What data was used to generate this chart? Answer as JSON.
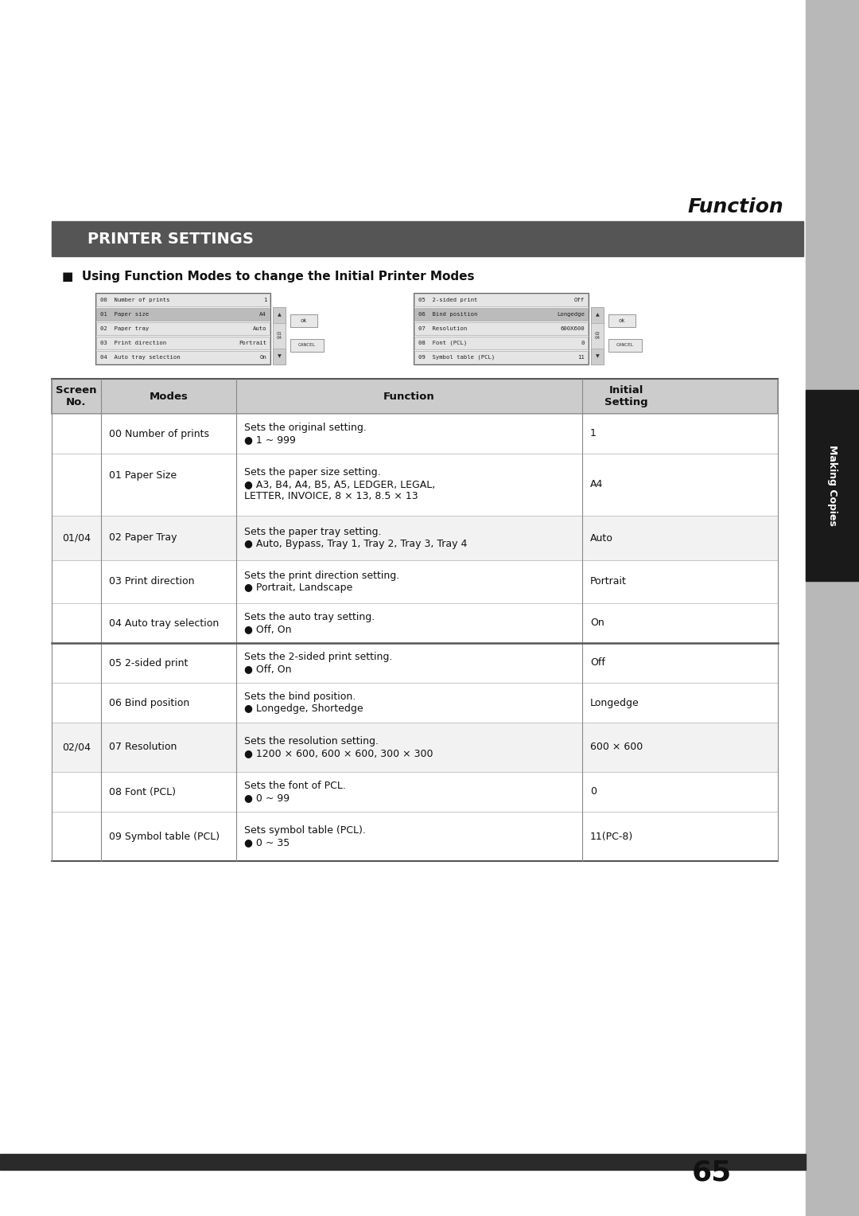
{
  "page_bg": "#ffffff",
  "sidebar_color": "#b8b8b8",
  "sidebar_text": "Making Copies",
  "sidebar_tab_color": "#1a1a1a",
  "header_label": "Function",
  "section_header_bg": "#555555",
  "section_header_text": "PRINTER SETTINGS",
  "subsection_title": "■  Using Function Modes to change the Initial Printer Modes",
  "page_number": "65",
  "table_header_bg": "#cccccc",
  "table_row_alt_bg": "#f2f2f2",
  "table_row_bg": "#ffffff",
  "col_headers": [
    "Screen\nNo.",
    "Modes",
    "Function",
    "Initial\nSetting"
  ],
  "rows": [
    {
      "screen": "",
      "mode": "00 Number of prints",
      "function_line1": "Sets the original setting.",
      "function_line2": "● 1 ~ 999",
      "initial": "1",
      "group": "01/04",
      "shade": false
    },
    {
      "screen": "",
      "mode": "01 Paper Size",
      "function_line1": "Sets the paper size setting.",
      "function_line2": "● A3, B4, A4, B5, A5, LEDGER, LEGAL,",
      "function_line3": "LETTER, INVOICE, 8 × 13, 8.5 × 13",
      "initial": "A4",
      "group": "01/04",
      "shade": false
    },
    {
      "screen": "01/04",
      "mode": "02 Paper Tray",
      "function_line1": "Sets the paper tray setting.",
      "function_line2": "● Auto, Bypass, Tray 1, Tray 2, Tray 3, Tray 4",
      "initial": "Auto",
      "group": "01/04",
      "shade": true
    },
    {
      "screen": "",
      "mode": "03 Print direction",
      "function_line1": "Sets the print direction setting.",
      "function_line2": "● Portrait, Landscape",
      "initial": "Portrait",
      "group": "01/04",
      "shade": false
    },
    {
      "screen": "",
      "mode": "04 Auto tray selection",
      "function_line1": "Sets the auto tray setting.",
      "function_line2": "● Off, On",
      "initial": "On",
      "group": "01/04",
      "shade": false
    },
    {
      "screen": "",
      "mode": "05 2-sided print",
      "function_line1": "Sets the 2-sided print setting.",
      "function_line2": "● Off, On",
      "initial": "Off",
      "group": "02/04",
      "shade": false
    },
    {
      "screen": "",
      "mode": "06 Bind position",
      "function_line1": "Sets the bind position.",
      "function_line2": "● Longedge, Shortedge",
      "initial": "Longedge",
      "group": "02/04",
      "shade": false
    },
    {
      "screen": "02/04",
      "mode": "07 Resolution",
      "function_line1": "Sets the resolution setting.",
      "function_line2": "● 1200 × 600, 600 × 600, 300 × 300",
      "initial": "600 × 600",
      "group": "02/04",
      "shade": true
    },
    {
      "screen": "",
      "mode": "08 Font (PCL)",
      "function_line1": "Sets the font of PCL.",
      "function_line2": "● 0 ~ 99",
      "initial": "0",
      "group": "02/04",
      "shade": false
    },
    {
      "screen": "",
      "mode": "09 Symbol table (PCL)",
      "function_line1": "Sets symbol table (PCL).",
      "function_line2": "● 0 ~ 35",
      "initial": "11(PC-8)",
      "group": "02/04",
      "shade": false
    }
  ],
  "screen_image_left": {
    "rows": [
      [
        "00  Number of prints",
        "1"
      ],
      [
        "01  Paper size",
        "A4"
      ],
      [
        "02  Paper tray",
        "Auto"
      ],
      [
        "03  Print direction",
        "Portrait"
      ],
      [
        "04  Auto tray selection",
        "On"
      ]
    ],
    "scroll_label": "01\n04"
  },
  "screen_image_right": {
    "rows": [
      [
        "05  2-sided print",
        "Off"
      ],
      [
        "06  Bind position",
        "Longedge"
      ],
      [
        "07  Resolution",
        "600X600"
      ],
      [
        "08  Font (PCL)",
        "0"
      ],
      [
        "09  Symbol table (PCL)",
        "11"
      ]
    ],
    "scroll_label": "02\n04"
  }
}
